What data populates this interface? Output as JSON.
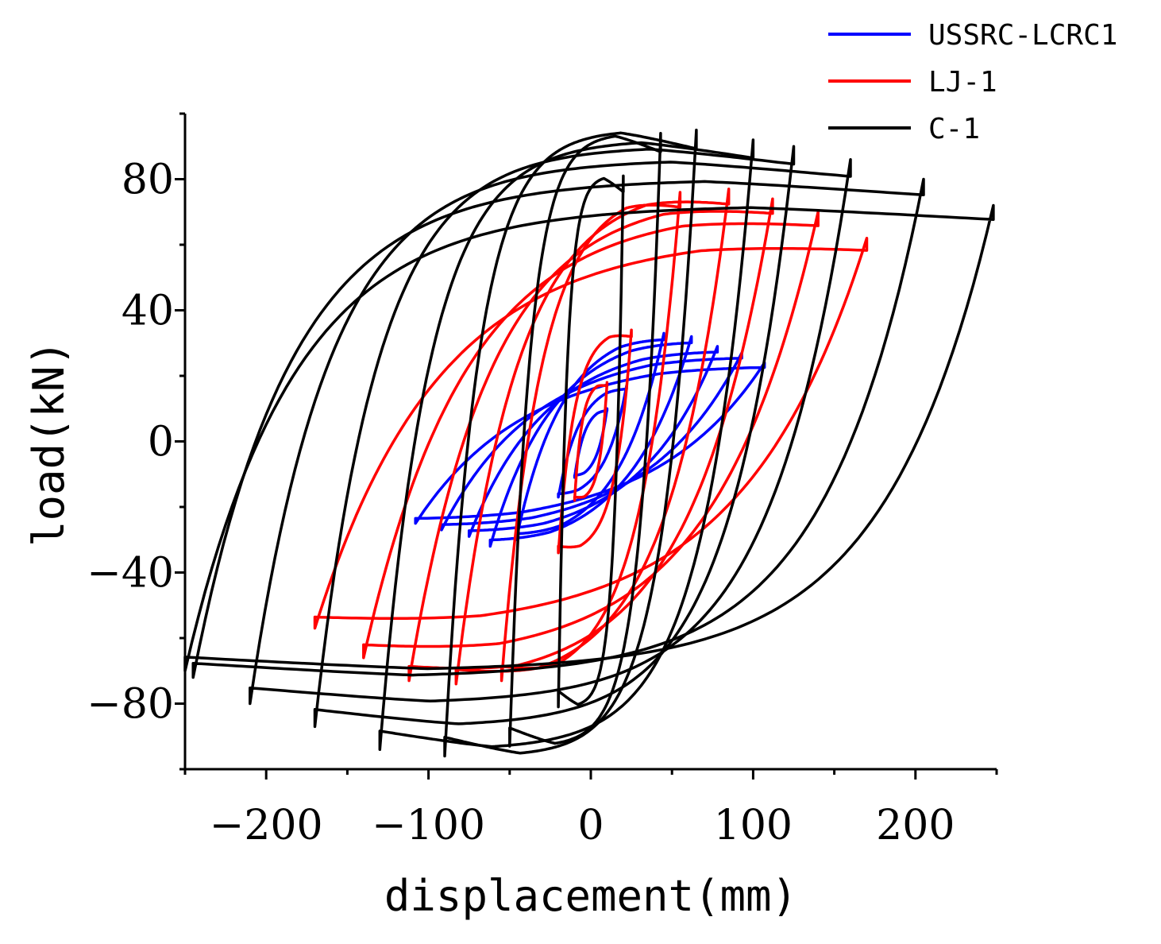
{
  "chart_data": {
    "type": "line",
    "title": "",
    "xlabel": "displacement(mm)",
    "ylabel": "load(kN)",
    "xlim": [
      -250,
      250
    ],
    "ylim": [
      -100,
      100
    ],
    "x_ticks": [
      -200,
      -100,
      0,
      100,
      200
    ],
    "x_tick_labels": [
      "−200",
      "−100",
      "0",
      "100",
      "200"
    ],
    "y_ticks": [
      -80,
      -40,
      0,
      40,
      80
    ],
    "y_tick_labels": [
      "−80",
      "−40",
      "0",
      "40",
      "80"
    ],
    "grid": false,
    "legend_position": "top-right",
    "series": [
      {
        "name": "USSRC-LCRC1",
        "color": "#0000ff",
        "description": "hysteresis loops",
        "cycles": [
          {
            "dmax": 10,
            "dmin": -10,
            "pmax": 10,
            "pmin": -11
          },
          {
            "dmax": 22,
            "dmin": -20,
            "pmax": 17,
            "pmin": -17
          },
          {
            "dmax": 45,
            "dmin": -46,
            "pmax": 33,
            "pmin": -30
          },
          {
            "dmax": 62,
            "dmin": -62,
            "pmax": 32,
            "pmin": -32
          },
          {
            "dmax": 78,
            "dmin": -75,
            "pmax": 29,
            "pmin": -29
          },
          {
            "dmax": 93,
            "dmin": -92,
            "pmax": 27,
            "pmin": -27
          },
          {
            "dmax": 107,
            "dmin": -108,
            "pmax": 24,
            "pmin": -25
          }
        ]
      },
      {
        "name": "LJ-1",
        "color": "#ff0000",
        "description": "hysteresis loops",
        "cycles": [
          {
            "dmax": 10,
            "dmin": -10,
            "pmax": 18,
            "pmin": -18
          },
          {
            "dmax": 25,
            "dmin": -20,
            "pmax": 34,
            "pmin": -34
          },
          {
            "dmax": 55,
            "dmin": -55,
            "pmax": 76,
            "pmin": -73
          },
          {
            "dmax": 85,
            "dmin": -83,
            "pmax": 77,
            "pmin": -74
          },
          {
            "dmax": 112,
            "dmin": -112,
            "pmax": 74,
            "pmin": -73
          },
          {
            "dmax": 140,
            "dmin": -140,
            "pmax": 70,
            "pmin": -66
          },
          {
            "dmax": 170,
            "dmin": -170,
            "pmax": 62,
            "pmin": -57
          }
        ]
      },
      {
        "name": "C-1",
        "color": "#000000",
        "description": "hysteresis loops",
        "cycles": [
          {
            "dmax": 20,
            "dmin": -20,
            "pmax": 81,
            "pmin": -81
          },
          {
            "dmax": 43,
            "dmin": -50,
            "pmax": 94,
            "pmin": -93
          },
          {
            "dmax": 65,
            "dmin": -90,
            "pmax": 95,
            "pmin": -96
          },
          {
            "dmax": 100,
            "dmin": -130,
            "pmax": 92,
            "pmin": -94
          },
          {
            "dmax": 125,
            "dmin": -170,
            "pmax": 90,
            "pmin": -87
          },
          {
            "dmax": 160,
            "dmin": -210,
            "pmax": 86,
            "pmin": -80
          },
          {
            "dmax": 205,
            "dmin": -245,
            "pmax": 80,
            "pmin": -72
          },
          {
            "dmax": 248,
            "dmin": -250,
            "pmax": 72,
            "pmin": -70
          }
        ]
      }
    ]
  }
}
